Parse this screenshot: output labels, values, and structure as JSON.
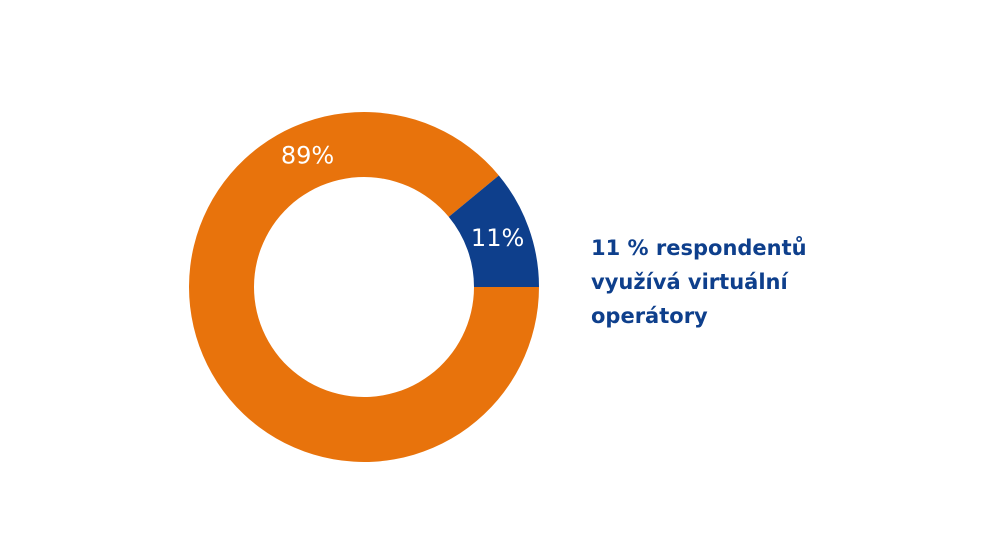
{
  "chart_data": {
    "type": "donut",
    "values": [
      89,
      11
    ],
    "value_labels": [
      "89%",
      "11%"
    ],
    "colors": [
      "#e8730c",
      "#0e3f8c"
    ],
    "annotation": [
      "11 % respondentů",
      "využívá virtuální",
      "operátory"
    ],
    "annotation_color": "#0e3f8c"
  }
}
